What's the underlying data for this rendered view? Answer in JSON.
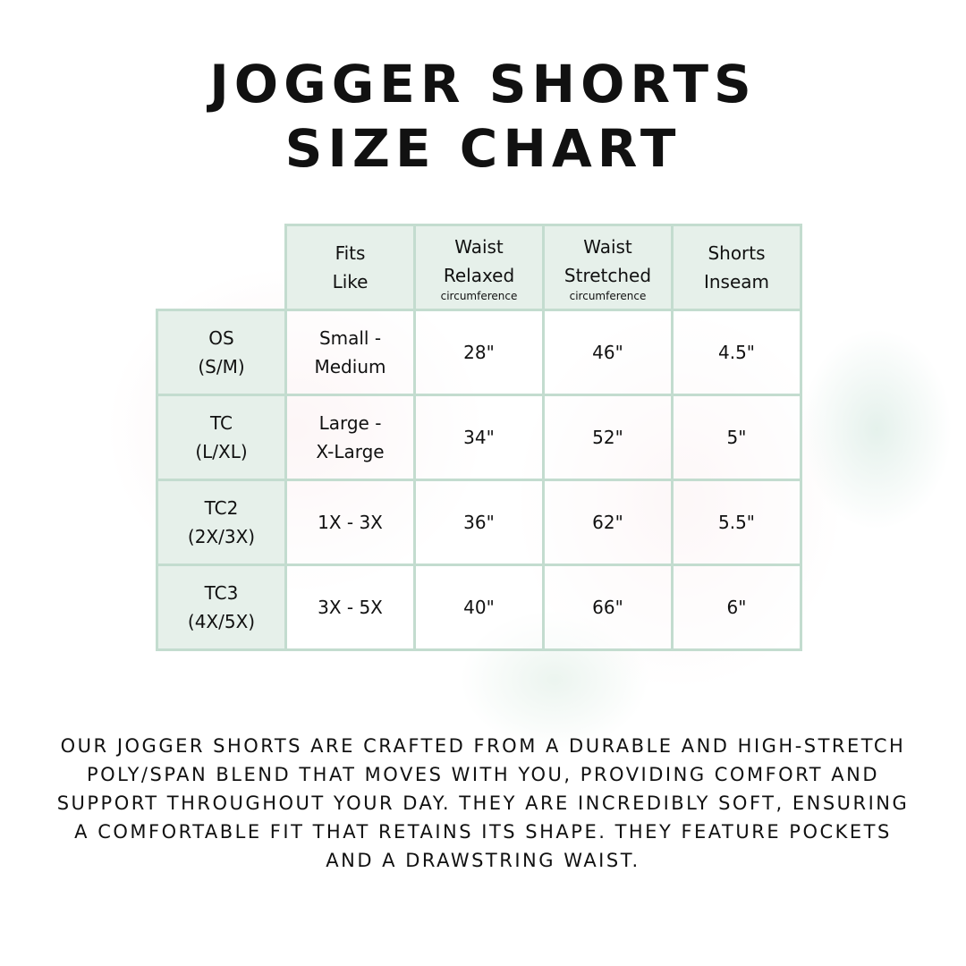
{
  "title": {
    "line1": "JOGGER SHORTS",
    "line2": "SIZE CHART"
  },
  "table": {
    "headers": [
      {
        "l1": "Fits",
        "l2": "Like",
        "sub": ""
      },
      {
        "l1": "Waist",
        "l2": "Relaxed",
        "sub": "circumference"
      },
      {
        "l1": "Waist",
        "l2": "Stretched",
        "sub": "circumference"
      },
      {
        "l1": "Shorts",
        "l2": "Inseam",
        "sub": ""
      }
    ],
    "rows": [
      {
        "size": "OS",
        "range": "(S/M)",
        "fits1": "Small -",
        "fits2": "Medium",
        "relaxed": "28\"",
        "stretched": "46\"",
        "inseam": "4.5\""
      },
      {
        "size": "TC",
        "range": "(L/XL)",
        "fits1": "Large -",
        "fits2": "X-Large",
        "relaxed": "34\"",
        "stretched": "52\"",
        "inseam": "5\""
      },
      {
        "size": "TC2",
        "range": "(2X/3X)",
        "fits1": "1X - 3X",
        "fits2": "",
        "relaxed": "36\"",
        "stretched": "62\"",
        "inseam": "5.5\""
      },
      {
        "size": "TC3",
        "range": "(4X/5X)",
        "fits1": "3X - 5X",
        "fits2": "",
        "relaxed": "40\"",
        "stretched": "66\"",
        "inseam": "6\""
      }
    ]
  },
  "description": "Our jogger shorts are crafted from a durable and high-stretch poly/span blend that moves with you, providing comfort and support throughout your day. They are incredibly soft, ensuring a comfortable fit that retains its shape. They feature pockets and a drawstring waist.",
  "colors": {
    "header_bg": "#e6f0ea",
    "border": "#c3dccf"
  }
}
